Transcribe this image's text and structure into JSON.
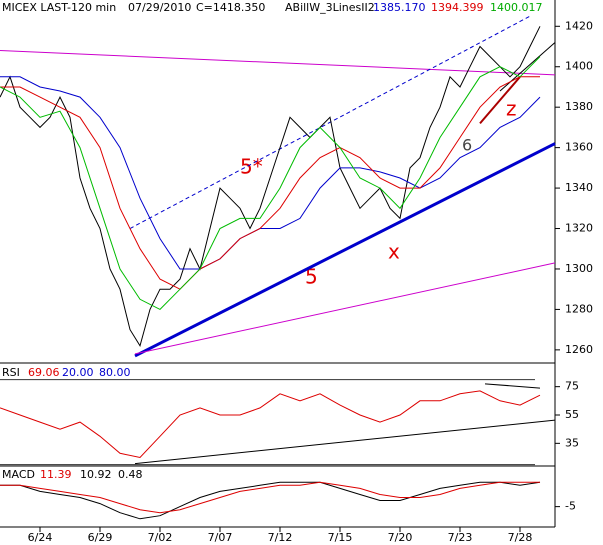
{
  "chart_data": [
    {
      "type": "line",
      "title": "MICEX LAST-120 min",
      "date": "07/29/2010",
      "last": "C=1418.350",
      "indicator": "ABillW_3LinesII2",
      "legend_labels": [
        "1385.170",
        "1394.399",
        "1400.017"
      ],
      "annotations": [
        "5*",
        "5",
        "x",
        "6",
        "z"
      ],
      "xlim": [
        0,
        55.5
      ],
      "ylim": [
        1254,
        1433
      ],
      "yticks": [
        1260,
        1280,
        1300,
        1320,
        1340,
        1360,
        1380,
        1400,
        1420
      ],
      "series": [
        {
          "color": "#000000",
          "x": [
            0,
            1,
            2,
            3,
            4,
            5,
            6,
            7,
            8,
            9,
            10,
            11,
            12,
            13,
            14,
            15,
            16,
            17,
            18,
            19,
            20,
            21,
            22,
            23,
            24,
            25,
            26,
            27,
            28,
            29,
            30,
            31,
            32,
            33,
            34,
            35,
            36,
            37,
            38,
            39,
            40,
            41,
            42,
            43,
            44,
            45,
            46,
            47,
            48,
            49,
            50,
            51,
            52,
            53,
            54
          ],
          "values": [
            1385,
            1395,
            1380,
            1375,
            1370,
            1375,
            1385,
            1375,
            1345,
            1330,
            1320,
            1300,
            1290,
            1270,
            1262,
            1280,
            1290,
            1290,
            1295,
            1310,
            1300,
            1320,
            1340,
            1335,
            1330,
            1320,
            1330,
            1345,
            1360,
            1375,
            1370,
            1365,
            1370,
            1375,
            1350,
            1340,
            1330,
            1335,
            1340,
            1330,
            1325,
            1350,
            1355,
            1370,
            1380,
            1395,
            1390,
            1400,
            1410,
            1405,
            1400,
            1395,
            1400,
            1410,
            1420
          ]
        },
        {
          "color": "#0000cc",
          "x": [
            0,
            2,
            4,
            6,
            8,
            10,
            12,
            14,
            16,
            18,
            20,
            22,
            24,
            26,
            28,
            30,
            32,
            34,
            36,
            38,
            40,
            42,
            44,
            46,
            48,
            50,
            52,
            54
          ],
          "values": [
            1395,
            1395,
            1390,
            1388,
            1385,
            1375,
            1360,
            1335,
            1315,
            1300,
            1300,
            1305,
            1315,
            1320,
            1320,
            1325,
            1340,
            1350,
            1350,
            1348,
            1345,
            1340,
            1345,
            1355,
            1360,
            1370,
            1375,
            1385
          ]
        },
        {
          "color": "#dd0000",
          "x": [
            0,
            2,
            4,
            6,
            8,
            10,
            12,
            14,
            16,
            18,
            20,
            22,
            24,
            26,
            28,
            30,
            32,
            34,
            36,
            38,
            40,
            42,
            44,
            46,
            48,
            50,
            52,
            54
          ],
          "values": [
            1390,
            1390,
            1385,
            1380,
            1375,
            1360,
            1330,
            1310,
            1295,
            1290,
            1300,
            1305,
            1315,
            1320,
            1330,
            1345,
            1355,
            1360,
            1355,
            1345,
            1340,
            1340,
            1350,
            1365,
            1380,
            1390,
            1395,
            1395
          ]
        },
        {
          "color": "#00bb00",
          "x": [
            0,
            2,
            4,
            6,
            8,
            10,
            12,
            14,
            16,
            18,
            20,
            22,
            24,
            26,
            28,
            30,
            32,
            34,
            36,
            38,
            40,
            42,
            44,
            46,
            48,
            50,
            52,
            54
          ],
          "values": [
            1390,
            1385,
            1375,
            1378,
            1360,
            1330,
            1300,
            1285,
            1280,
            1290,
            1300,
            1320,
            1325,
            1325,
            1340,
            1360,
            1370,
            1360,
            1345,
            1340,
            1330,
            1345,
            1365,
            1380,
            1395,
            1400,
            1395,
            1405
          ]
        }
      ],
      "trendlines": [
        {
          "color": "#0000cc",
          "width": 3,
          "x": [
            13.5,
            55.5
          ],
          "values": [
            1257,
            1362
          ]
        },
        {
          "color": "#cc00cc",
          "width": 1,
          "x": [
            13.5,
            55.5
          ],
          "values": [
            1258,
            1303
          ]
        },
        {
          "color": "#cc00cc",
          "width": 1,
          "x": [
            0,
            55.5
          ],
          "values": [
            1408,
            1396
          ]
        },
        {
          "color": "#0000cc",
          "width": 1,
          "dash": true,
          "x": [
            13,
            53
          ],
          "values": [
            1320,
            1425
          ]
        },
        {
          "color": "#000000",
          "width": 1,
          "x": [
            50,
            55.5
          ],
          "values": [
            1388,
            1412
          ]
        },
        {
          "color": "#aa0000",
          "width": 2,
          "x": [
            48,
            52
          ],
          "values": [
            1372,
            1395
          ]
        }
      ]
    },
    {
      "type": "line",
      "title": "RSI",
      "legend_labels": [
        "69.06",
        "20.00",
        "80.00"
      ],
      "xlim": [
        0,
        55.5
      ],
      "ylim": [
        19,
        91
      ],
      "yticks": [
        35,
        55,
        75
      ],
      "levels": [
        20,
        80
      ],
      "series": [
        {
          "color": "#dd0000",
          "x": [
            0,
            2,
            4,
            6,
            8,
            10,
            12,
            14,
            16,
            18,
            20,
            22,
            24,
            26,
            28,
            30,
            32,
            34,
            36,
            38,
            40,
            42,
            44,
            46,
            48,
            50,
            52,
            54
          ],
          "values": [
            60,
            55,
            50,
            45,
            50,
            40,
            28,
            25,
            40,
            55,
            60,
            55,
            55,
            60,
            70,
            65,
            70,
            62,
            55,
            50,
            55,
            65,
            65,
            70,
            72,
            65,
            62,
            69
          ]
        }
      ],
      "trendlines": [
        {
          "color": "#000000",
          "width": 1,
          "x": [
            13.5,
            55.5
          ],
          "values": [
            20.7,
            51.4
          ]
        },
        {
          "color": "#000000",
          "width": 1,
          "x": [
            48.5,
            54
          ],
          "values": [
            77,
            74
          ]
        }
      ]
    },
    {
      "type": "line",
      "title": "MACD",
      "legend_labels": [
        "11.39",
        "10.92",
        "0.48"
      ],
      "xlim": [
        0,
        55.5
      ],
      "ylim": [
        -11.7,
        7.7
      ],
      "yticks": [
        -5
      ],
      "xticks": [
        {
          "value": 4,
          "label": "6/24"
        },
        {
          "value": 10,
          "label": "6/29"
        },
        {
          "value": 16,
          "label": "7/02"
        },
        {
          "value": 22,
          "label": "7/07"
        },
        {
          "value": 28,
          "label": "7/12"
        },
        {
          "value": 34,
          "label": "7/15"
        },
        {
          "value": 40,
          "label": "7/20"
        },
        {
          "value": 46,
          "label": "7/23"
        },
        {
          "value": 52,
          "label": "7/28"
        }
      ],
      "series": [
        {
          "color": "#000000",
          "x": [
            0,
            2,
            4,
            6,
            8,
            10,
            12,
            14,
            16,
            18,
            20,
            22,
            24,
            26,
            28,
            30,
            32,
            34,
            36,
            38,
            40,
            42,
            44,
            46,
            48,
            50,
            52,
            54
          ],
          "values": [
            2,
            2,
            0,
            -1,
            -2,
            -4,
            -7,
            -9,
            -8,
            -5,
            -2,
            0,
            1,
            2,
            3,
            3,
            3,
            1,
            -1,
            -3,
            -3,
            -1,
            1,
            2,
            3,
            3,
            2,
            3
          ]
        },
        {
          "color": "#dd0000",
          "x": [
            0,
            2,
            4,
            6,
            8,
            10,
            12,
            14,
            16,
            18,
            20,
            22,
            24,
            26,
            28,
            30,
            32,
            34,
            36,
            38,
            40,
            42,
            44,
            46,
            48,
            50,
            52,
            54
          ],
          "values": [
            2,
            2,
            1,
            0,
            -1,
            -2,
            -4,
            -6,
            -7,
            -6,
            -4,
            -2,
            0,
            1,
            2,
            2,
            3,
            2,
            1,
            -1,
            -2,
            -2,
            -1,
            1,
            2,
            3,
            3,
            3
          ]
        }
      ],
      "trendlines": []
    }
  ]
}
